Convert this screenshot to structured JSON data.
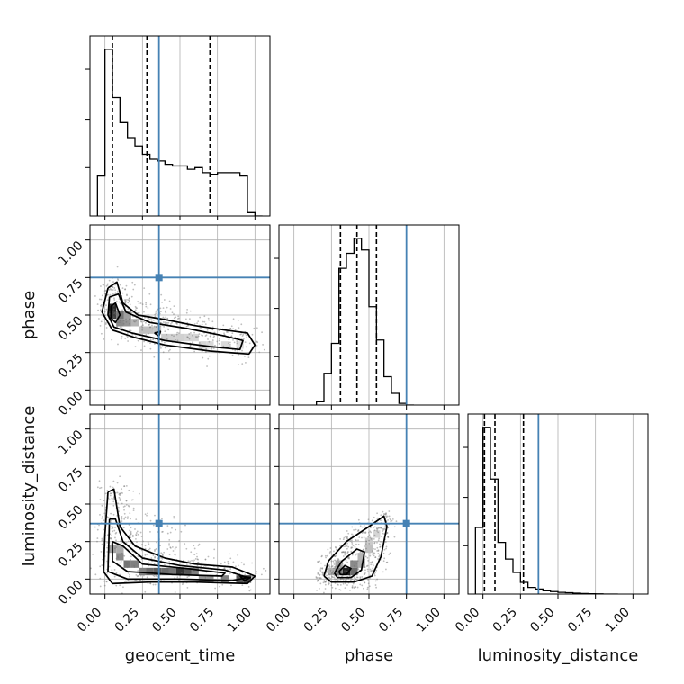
{
  "chart_data": {
    "type": "corner",
    "grid": true,
    "colors": {
      "truth": "#4682b4",
      "line": "#000000",
      "points": "#6e6e6e",
      "grid": "#b0b0b0"
    },
    "parameters": [
      {
        "name": "geocent_time",
        "truth": 0.36,
        "quantiles": [
          0.05,
          0.28,
          0.7
        ]
      },
      {
        "name": "phase",
        "truth": 0.75,
        "quantiles": [
          0.31,
          0.42,
          0.55
        ]
      },
      {
        "name": "luminosity_distance",
        "truth": 0.37,
        "quantiles": [
          0.01,
          0.08,
          0.27
        ]
      }
    ],
    "tick_values": [
      0.0,
      0.25,
      0.5,
      0.75,
      1.0
    ],
    "tick_labels": [
      "0.00",
      "0.25",
      "0.50",
      "0.75",
      "1.00"
    ],
    "axis_range": [
      -0.1,
      1.1
    ],
    "histograms": [
      {
        "param": "geocent_time",
        "bin_edges": [
          -0.05,
          0.0,
          0.05,
          0.1,
          0.15,
          0.2,
          0.25,
          0.3,
          0.35,
          0.4,
          0.45,
          0.5,
          0.55,
          0.6,
          0.65,
          0.7,
          0.75,
          0.8,
          0.85,
          0.9,
          0.95,
          1.0,
          1.05
        ],
        "counts": [
          0.24,
          1.0,
          0.71,
          0.56,
          0.47,
          0.42,
          0.37,
          0.34,
          0.33,
          0.31,
          0.3,
          0.3,
          0.28,
          0.29,
          0.26,
          0.25,
          0.26,
          0.26,
          0.26,
          0.24,
          0.02,
          0.0
        ]
      },
      {
        "param": "phase",
        "bin_edges": [
          0.15,
          0.2,
          0.25,
          0.3,
          0.35,
          0.4,
          0.45,
          0.5,
          0.55,
          0.6,
          0.65,
          0.7,
          0.75,
          0.8
        ],
        "counts": [
          0.02,
          0.19,
          0.37,
          0.82,
          0.91,
          1.0,
          0.93,
          0.59,
          0.39,
          0.17,
          0.07,
          0.01,
          0.0
        ]
      },
      {
        "param": "luminosity_distance",
        "bin_edges": [
          -0.05,
          0.0,
          0.05,
          0.1,
          0.15,
          0.2,
          0.25,
          0.3,
          0.35,
          0.4,
          0.45,
          0.5,
          0.55,
          0.6,
          0.65,
          0.7,
          0.75,
          0.8,
          0.85,
          0.9
        ],
        "counts": [
          0.4,
          1.0,
          0.69,
          0.31,
          0.21,
          0.13,
          0.07,
          0.04,
          0.03,
          0.02,
          0.015,
          0.01,
          0.008,
          0.005,
          0.003,
          0.002,
          0.001,
          0.0,
          0.0
        ]
      }
    ],
    "scatter_panels": [
      {
        "x": "geocent_time",
        "y": "phase",
        "contours": [
          [
            [
              0.02,
              0.68
            ],
            [
              0.08,
              0.72
            ],
            [
              0.12,
              0.58
            ],
            [
              0.22,
              0.5
            ],
            [
              0.4,
              0.47
            ],
            [
              0.6,
              0.43
            ],
            [
              0.8,
              0.4
            ],
            [
              0.95,
              0.38
            ],
            [
              1.0,
              0.3
            ],
            [
              0.96,
              0.24
            ],
            [
              0.7,
              0.26
            ],
            [
              0.4,
              0.3
            ],
            [
              0.2,
              0.35
            ],
            [
              0.05,
              0.4
            ],
            [
              -0.02,
              0.52
            ],
            [
              0.02,
              0.68
            ]
          ],
          [
            [
              0.03,
              0.62
            ],
            [
              0.09,
              0.64
            ],
            [
              0.14,
              0.52
            ],
            [
              0.3,
              0.45
            ],
            [
              0.55,
              0.41
            ],
            [
              0.8,
              0.36
            ],
            [
              0.92,
              0.33
            ],
            [
              0.9,
              0.27
            ],
            [
              0.7,
              0.29
            ],
            [
              0.4,
              0.33
            ],
            [
              0.18,
              0.38
            ],
            [
              0.06,
              0.42
            ],
            [
              0.02,
              0.5
            ],
            [
              0.03,
              0.62
            ]
          ],
          [
            [
              0.04,
              0.56
            ],
            [
              0.07,
              0.58
            ],
            [
              0.1,
              0.5
            ],
            [
              0.07,
              0.45
            ],
            [
              0.04,
              0.48
            ],
            [
              0.04,
              0.56
            ]
          ],
          [
            [
              0.33,
              0.38
            ],
            [
              0.37,
              0.39
            ],
            [
              0.36,
              0.36
            ],
            [
              0.33,
              0.38
            ]
          ]
        ],
        "density_cells": [
          [
            0.05,
            0.55,
            0.9
          ],
          [
            0.05,
            0.5,
            0.8
          ],
          [
            0.1,
            0.5,
            0.55
          ],
          [
            0.1,
            0.45,
            0.45
          ],
          [
            0.15,
            0.45,
            0.4
          ],
          [
            0.15,
            0.5,
            0.35
          ],
          [
            0.2,
            0.45,
            0.25
          ],
          [
            0.25,
            0.4,
            0.2
          ],
          [
            0.3,
            0.4,
            0.2
          ],
          [
            0.35,
            0.4,
            0.18
          ],
          [
            0.4,
            0.35,
            0.15
          ],
          [
            0.45,
            0.35,
            0.12
          ],
          [
            0.5,
            0.35,
            0.12
          ],
          [
            0.55,
            0.35,
            0.1
          ],
          [
            0.6,
            0.35,
            0.1
          ],
          [
            0.65,
            0.3,
            0.1
          ],
          [
            0.7,
            0.3,
            0.08
          ],
          [
            0.8,
            0.3,
            0.08
          ],
          [
            0.9,
            0.3,
            0.06
          ]
        ]
      },
      {
        "x": "geocent_time",
        "y": "luminosity_distance",
        "contours": [
          [
            [
              0.02,
              0.58
            ],
            [
              0.06,
              0.6
            ],
            [
              0.1,
              0.35
            ],
            [
              0.2,
              0.22
            ],
            [
              0.4,
              0.14
            ],
            [
              0.6,
              0.1
            ],
            [
              0.85,
              0.08
            ],
            [
              1.0,
              0.02
            ],
            [
              0.95,
              -0.03
            ],
            [
              0.6,
              -0.02
            ],
            [
              0.3,
              -0.02
            ],
            [
              0.05,
              -0.03
            ],
            [
              -0.01,
              0.05
            ],
            [
              0.0,
              0.3
            ],
            [
              0.02,
              0.58
            ]
          ],
          [
            [
              0.03,
              0.4
            ],
            [
              0.07,
              0.4
            ],
            [
              0.12,
              0.25
            ],
            [
              0.25,
              0.14
            ],
            [
              0.5,
              0.09
            ],
            [
              0.8,
              0.06
            ],
            [
              0.95,
              0.01
            ],
            [
              0.85,
              -0.01
            ],
            [
              0.5,
              0.0
            ],
            [
              0.15,
              0.0
            ],
            [
              0.02,
              0.05
            ],
            [
              0.03,
              0.4
            ]
          ],
          [
            [
              0.05,
              0.25
            ],
            [
              0.12,
              0.22
            ],
            [
              0.25,
              0.1
            ],
            [
              0.55,
              0.07
            ],
            [
              0.8,
              0.04
            ],
            [
              0.78,
              0.02
            ],
            [
              0.45,
              0.03
            ],
            [
              0.15,
              0.05
            ],
            [
              0.05,
              0.12
            ],
            [
              0.05,
              0.25
            ]
          ],
          [
            [
              0.9,
              0.02
            ],
            [
              0.97,
              0.01
            ],
            [
              0.93,
              -0.01
            ],
            [
              0.9,
              0.02
            ]
          ]
        ],
        "density_cells": [
          [
            0.05,
            0.2,
            0.35
          ],
          [
            0.1,
            0.15,
            0.45
          ],
          [
            0.15,
            0.1,
            0.55
          ],
          [
            0.1,
            0.2,
            0.3
          ],
          [
            0.2,
            0.1,
            0.5
          ],
          [
            0.25,
            0.05,
            0.5
          ],
          [
            0.3,
            0.05,
            0.6
          ],
          [
            0.35,
            0.05,
            0.65
          ],
          [
            0.4,
            0.05,
            0.6
          ],
          [
            0.45,
            0.05,
            0.55
          ],
          [
            0.5,
            0.05,
            0.85
          ],
          [
            0.55,
            0.05,
            0.7
          ],
          [
            0.6,
            0.05,
            0.5
          ],
          [
            0.65,
            0.0,
            0.4
          ],
          [
            0.7,
            0.0,
            0.4
          ],
          [
            0.8,
            0.0,
            0.5
          ],
          [
            0.9,
            0.0,
            0.7
          ],
          [
            0.95,
            0.0,
            0.8
          ]
        ]
      },
      {
        "x": "phase",
        "y": "luminosity_distance",
        "contours": [
          [
            [
              0.2,
              0.02
            ],
            [
              0.23,
              0.12
            ],
            [
              0.35,
              0.25
            ],
            [
              0.5,
              0.35
            ],
            [
              0.6,
              0.42
            ],
            [
              0.62,
              0.35
            ],
            [
              0.58,
              0.15
            ],
            [
              0.52,
              0.02
            ],
            [
              0.4,
              -0.02
            ],
            [
              0.25,
              -0.02
            ],
            [
              0.2,
              0.02
            ]
          ],
          [
            [
              0.27,
              0.04
            ],
            [
              0.32,
              0.12
            ],
            [
              0.42,
              0.2
            ],
            [
              0.47,
              0.18
            ],
            [
              0.45,
              0.06
            ],
            [
              0.38,
              0.01
            ],
            [
              0.29,
              0.01
            ],
            [
              0.27,
              0.04
            ]
          ],
          [
            [
              0.3,
              0.05
            ],
            [
              0.34,
              0.09
            ],
            [
              0.38,
              0.07
            ],
            [
              0.35,
              0.03
            ],
            [
              0.31,
              0.03
            ],
            [
              0.3,
              0.05
            ]
          ]
        ],
        "density_cells": [
          [
            0.35,
            0.05,
            0.95
          ],
          [
            0.3,
            0.05,
            0.5
          ],
          [
            0.4,
            0.05,
            0.6
          ],
          [
            0.4,
            0.1,
            0.45
          ],
          [
            0.45,
            0.1,
            0.3
          ],
          [
            0.45,
            0.15,
            0.25
          ],
          [
            0.5,
            0.2,
            0.2
          ],
          [
            0.5,
            0.25,
            0.15
          ],
          [
            0.55,
            0.3,
            0.1
          ],
          [
            0.3,
            0.1,
            0.3
          ],
          [
            0.25,
            0.05,
            0.25
          ]
        ]
      }
    ]
  }
}
